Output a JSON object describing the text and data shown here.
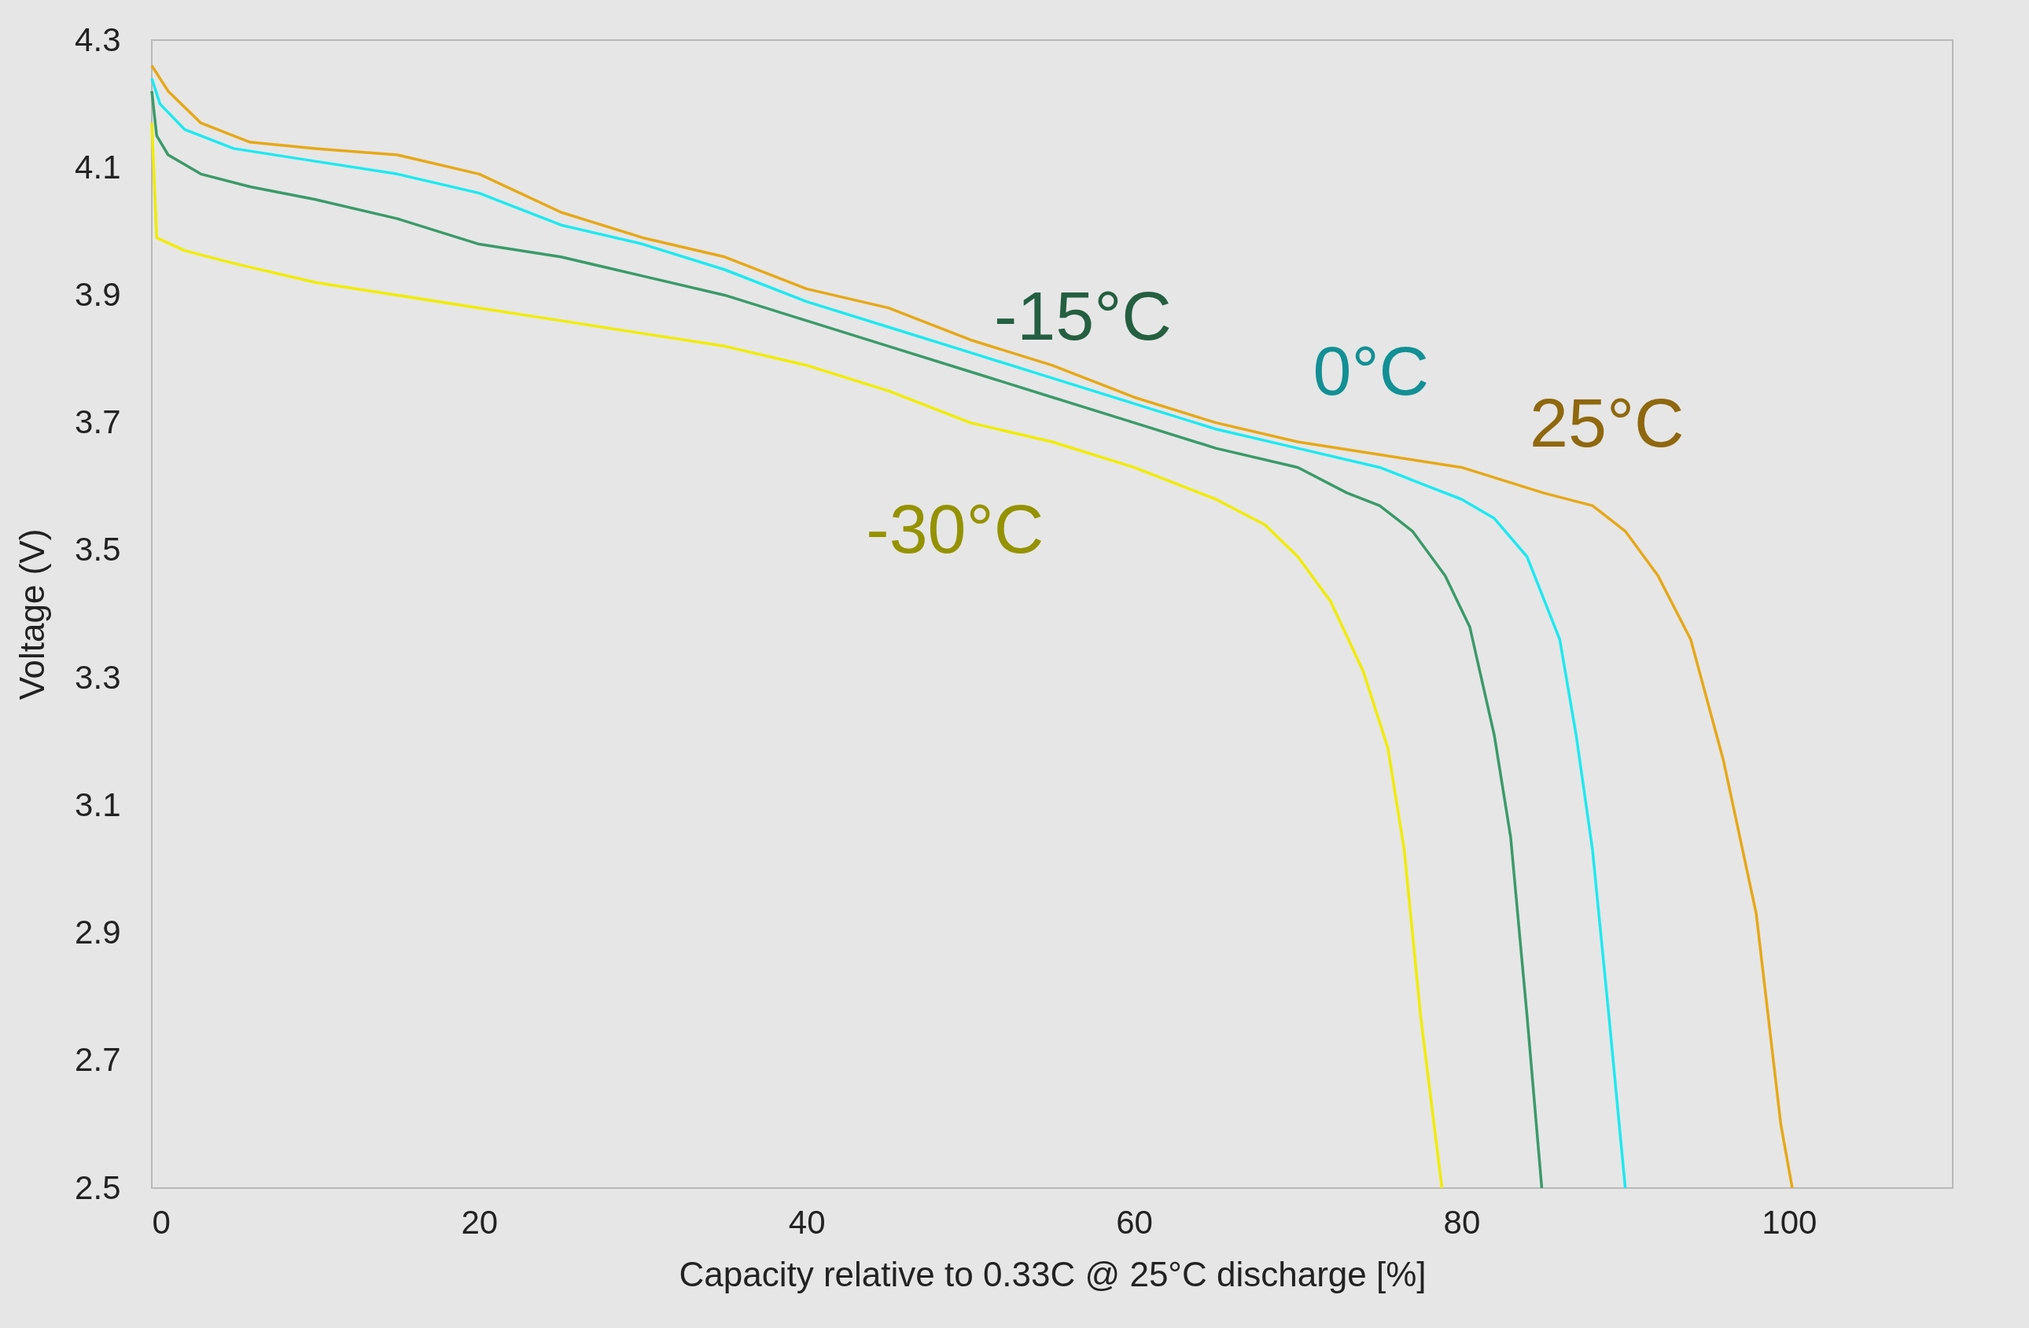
{
  "chart_data": {
    "type": "line",
    "xlabel": "Capacity relative to 0.33C @ 25°C discharge [%]",
    "ylabel": "Voltage (V)",
    "xlim": [
      0,
      110
    ],
    "xticks": [
      0,
      20,
      40,
      60,
      80,
      100
    ],
    "ylim": [
      2.5,
      4.3
    ],
    "yticks": [
      2.5,
      2.7,
      2.9,
      3.1,
      3.3,
      3.5,
      3.7,
      3.9,
      4.1,
      4.3
    ],
    "grid": false,
    "legend": false,
    "marker": "none",
    "line_style": "solid",
    "series": [
      {
        "name": "-15°C",
        "color": "#3a9a6a",
        "x": [
          0,
          0.3,
          1,
          3,
          6,
          10,
          15,
          20,
          25,
          30,
          35,
          40,
          45,
          50,
          55,
          60,
          65,
          70,
          73,
          75,
          77,
          79,
          80.5,
          82,
          83,
          84,
          84.9
        ],
        "values": [
          4.22,
          4.15,
          4.12,
          4.09,
          4.07,
          4.05,
          4.02,
          3.98,
          3.96,
          3.93,
          3.9,
          3.86,
          3.82,
          3.78,
          3.74,
          3.7,
          3.66,
          3.63,
          3.59,
          3.57,
          3.53,
          3.46,
          3.38,
          3.21,
          3.05,
          2.77,
          2.5
        ]
      },
      {
        "name": "0°C",
        "color": "#1de9f0",
        "x": [
          0,
          0.5,
          2,
          5,
          10,
          15,
          20,
          25,
          30,
          35,
          40,
          45,
          50,
          55,
          60,
          65,
          70,
          75,
          78,
          80,
          82,
          84,
          86,
          87,
          88,
          89,
          90
        ],
        "values": [
          4.24,
          4.2,
          4.16,
          4.13,
          4.11,
          4.09,
          4.06,
          4.01,
          3.98,
          3.94,
          3.89,
          3.85,
          3.81,
          3.77,
          3.73,
          3.69,
          3.66,
          3.63,
          3.6,
          3.58,
          3.55,
          3.49,
          3.36,
          3.21,
          3.03,
          2.77,
          2.5
        ]
      },
      {
        "name": "25°C",
        "color": "#e6a817",
        "x": [
          0,
          1,
          3,
          6,
          10,
          15,
          20,
          25,
          30,
          35,
          40,
          45,
          50,
          55,
          60,
          65,
          70,
          75,
          80,
          85,
          88,
          90,
          92,
          94,
          96,
          98,
          99.5,
          100.2
        ],
        "values": [
          4.26,
          4.22,
          4.17,
          4.14,
          4.13,
          4.12,
          4.09,
          4.03,
          3.99,
          3.96,
          3.91,
          3.88,
          3.83,
          3.79,
          3.74,
          3.7,
          3.67,
          3.65,
          3.63,
          3.59,
          3.57,
          3.53,
          3.46,
          3.36,
          3.17,
          2.93,
          2.6,
          2.5
        ]
      },
      {
        "name": "-30°C",
        "color": "#f0ec00",
        "x": [
          0,
          0.3,
          2,
          5,
          10,
          15,
          20,
          25,
          30,
          35,
          40,
          45,
          50,
          55,
          60,
          65,
          68,
          70,
          72,
          74,
          75.5,
          76.5,
          77.5,
          78.8
        ],
        "values": [
          4.17,
          3.99,
          3.97,
          3.95,
          3.92,
          3.9,
          3.88,
          3.86,
          3.84,
          3.82,
          3.79,
          3.75,
          3.7,
          3.67,
          3.63,
          3.58,
          3.54,
          3.49,
          3.42,
          3.31,
          3.19,
          3.03,
          2.77,
          2.5
        ]
      }
    ]
  }
}
